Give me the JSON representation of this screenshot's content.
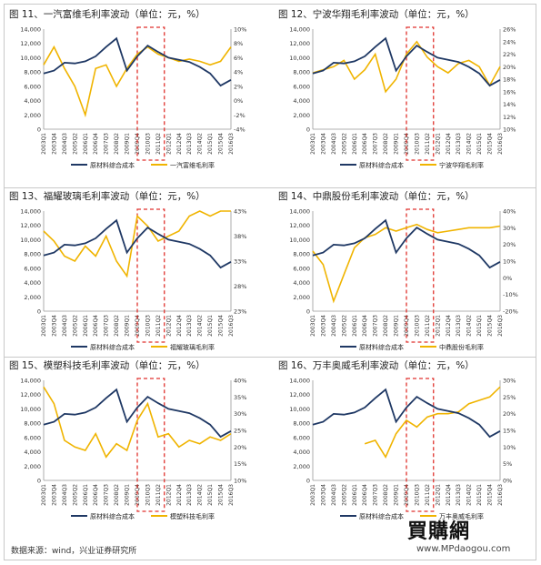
{
  "footer": {
    "source": "数据来源：wind，兴业证券研究所"
  },
  "watermark": {
    "logo": "買購網",
    "url": "www.MPdaogou.com"
  },
  "colors": {
    "cost": "#1f3864",
    "margin": "#f0b400",
    "highlight": "#e0322d"
  },
  "chart_data": [
    {
      "type": "line",
      "title": "图 11、一汽富维毛利率波动（单位：元，%）",
      "legend": [
        "原材料综合成本",
        "一汽富维毛利率"
      ],
      "x": [
        "2003Q1",
        "2003Q4",
        "2004Q3",
        "2005Q2",
        "2006Q1",
        "2006Q4",
        "2007Q3",
        "2008Q2",
        "2009Q1",
        "2009Q4",
        "2010Q3",
        "2011Q2",
        "2012Q1",
        "2012Q4",
        "2013Q3",
        "2014Q2",
        "2015Q1",
        "2015Q4",
        "2016Q3"
      ],
      "ylim": [
        0,
        14000
      ],
      "ytick_step": 2000,
      "ylim2": [
        -4,
        10
      ],
      "ytick2_step": 2,
      "y2_suffix": "%",
      "highlight": [
        9,
        11.6
      ],
      "cost_values": [
        7800,
        8200,
        9300,
        9200,
        9500,
        10200,
        11500,
        12700,
        8200,
        10200,
        11700,
        10800,
        10000,
        9700,
        9400,
        8700,
        7800,
        6100,
        6900
      ],
      "margin_values": [
        5.0,
        7.5,
        4.5,
        2.0,
        -2.0,
        4.5,
        5.0,
        2.0,
        4.5,
        6.5,
        7.5,
        6.5,
        6.0,
        5.5,
        5.8,
        5.5,
        5.0,
        5.5,
        7.5
      ]
    },
    {
      "type": "line",
      "title": "图 12、宁波华翔毛利率波动（单位：元，%）",
      "legend": [
        "原材料综合成本",
        "宁波华翔毛利率"
      ],
      "x": [
        "2003Q1",
        "2003Q4",
        "2004Q3",
        "2005Q2",
        "2006Q1",
        "2006Q4",
        "2007Q3",
        "2008Q2",
        "2009Q1",
        "2009Q4",
        "2010Q3",
        "2011Q2",
        "2012Q1",
        "2012Q4",
        "2013Q3",
        "2014Q2",
        "2015Q1",
        "2015Q4",
        "2016Q3"
      ],
      "ylim": [
        0,
        14000
      ],
      "ytick_step": 2000,
      "ylim2": [
        10,
        26
      ],
      "ytick2_step": 2,
      "y2_suffix": "%",
      "highlight": [
        9,
        11.6
      ],
      "cost_values": [
        7800,
        8200,
        9300,
        9200,
        9500,
        10200,
        11500,
        12700,
        8200,
        10200,
        11700,
        10800,
        10000,
        9700,
        9400,
        8700,
        7800,
        6100,
        6900
      ],
      "margin_values": [
        19.0,
        19.5,
        20.0,
        21.0,
        18.0,
        19.5,
        22.0,
        16.0,
        18.0,
        22.0,
        24.0,
        21.5,
        20.0,
        19.0,
        20.5,
        21.0,
        20.0,
        17.0,
        20.0
      ]
    },
    {
      "type": "line",
      "title": "图 13、福耀玻璃毛利率波动（单位：元，%）",
      "legend": [
        "原材料综合成本",
        "福耀玻璃毛利率"
      ],
      "x": [
        "2003Q1",
        "2003Q4",
        "2004Q3",
        "2005Q2",
        "2006Q1",
        "2006Q4",
        "2007Q3",
        "2008Q2",
        "2009Q1",
        "2009Q4",
        "2010Q3",
        "2011Q2",
        "2012Q1",
        "2012Q4",
        "2013Q3",
        "2014Q2",
        "2015Q1",
        "2015Q4",
        "2016Q3"
      ],
      "ylim": [
        0,
        14000
      ],
      "ytick_step": 2000,
      "ylim2": [
        23,
        43
      ],
      "ytick_labels2": [
        23,
        28,
        33,
        38,
        43
      ],
      "y2_suffix": "%",
      "highlight": [
        9,
        11.6
      ],
      "cost_values": [
        7800,
        8200,
        9300,
        9200,
        9500,
        10200,
        11500,
        12700,
        8200,
        10200,
        11700,
        10800,
        10000,
        9700,
        9400,
        8700,
        7800,
        6100,
        6900
      ],
      "margin_values": [
        39.0,
        37.0,
        34.0,
        33.0,
        36.0,
        34.0,
        38.0,
        33.0,
        30.0,
        42.0,
        40.0,
        37.0,
        38.0,
        39.0,
        42.0,
        43.0,
        42.0,
        43.0,
        43.0
      ]
    },
    {
      "type": "line",
      "title": "图 14、中鼎股份毛利率波动（单位：元，%）",
      "legend": [
        "原材料综合成本",
        "中鼎股份毛利率"
      ],
      "x": [
        "2003Q1",
        "2003Q4",
        "2004Q3",
        "2005Q2",
        "2006Q1",
        "2006Q4",
        "2007Q3",
        "2008Q2",
        "2009Q1",
        "2009Q4",
        "2010Q3",
        "2011Q2",
        "2012Q1",
        "2012Q4",
        "2013Q3",
        "2014Q2",
        "2015Q1",
        "2015Q4",
        "2016Q3"
      ],
      "ylim": [
        0,
        14000
      ],
      "ytick_step": 2000,
      "ylim2": [
        -20,
        40
      ],
      "ytick2_step": 10,
      "y2_suffix": "%",
      "highlight": [
        9,
        11.6
      ],
      "cost_values": [
        7800,
        8200,
        9300,
        9200,
        9500,
        10200,
        11500,
        12700,
        8200,
        10200,
        11700,
        10800,
        10000,
        9700,
        9400,
        8700,
        7800,
        6100,
        6900
      ],
      "margin_values": [
        16.0,
        8.0,
        -14.0,
        2.0,
        18.0,
        24.0,
        26.0,
        30.0,
        28.0,
        30.0,
        32.0,
        29.0,
        27.0,
        28.0,
        29.0,
        30.0,
        30.0,
        30.0,
        31.0
      ]
    },
    {
      "type": "line",
      "title": "图 15、模塑科技毛利率波动（单位：元，%）",
      "legend": [
        "原材料综合成本",
        "模塑科技毛利率"
      ],
      "x": [
        "2003Q1",
        "2003Q4",
        "2004Q3",
        "2005Q2",
        "2006Q1",
        "2006Q4",
        "2007Q3",
        "2008Q2",
        "2009Q1",
        "2009Q4",
        "2010Q3",
        "2011Q2",
        "2012Q1",
        "2012Q4",
        "2013Q3",
        "2014Q2",
        "2015Q1",
        "2015Q4",
        "2016Q3"
      ],
      "ylim": [
        0,
        14000
      ],
      "ytick_step": 2000,
      "ylim2": [
        10,
        40
      ],
      "ytick2_step": 5,
      "y2_suffix": "%",
      "highlight": [
        9,
        11.6
      ],
      "cost_values": [
        7800,
        8200,
        9300,
        9200,
        9500,
        10200,
        11500,
        12700,
        8200,
        10200,
        11700,
        10800,
        10000,
        9700,
        9400,
        8700,
        7800,
        6100,
        6900
      ],
      "margin_values": [
        38.0,
        33.0,
        22.0,
        20.0,
        19.0,
        24.0,
        17.0,
        21.0,
        19.0,
        28.0,
        33.0,
        23.0,
        24.0,
        20.0,
        22.0,
        21.0,
        23.0,
        22.0,
        24.0
      ]
    },
    {
      "type": "line",
      "title": "图 16、万丰奥威毛利率波动（单位：元，%）",
      "legend": [
        "原材料综合成本",
        "万丰奥威毛利率"
      ],
      "x": [
        "2003Q1",
        "2003Q4",
        "2004Q3",
        "2005Q2",
        "2006Q1",
        "2006Q4",
        "2007Q3",
        "2008Q2",
        "2009Q1",
        "2009Q4",
        "2010Q3",
        "2011Q2",
        "2012Q1",
        "2012Q4",
        "2013Q3",
        "2014Q2",
        "2015Q1",
        "2015Q4",
        "2016Q3"
      ],
      "ylim": [
        0,
        14000
      ],
      "ytick_step": 2000,
      "ylim2": [
        0,
        30
      ],
      "ytick2_step": 5,
      "y2_suffix": "%",
      "highlight": [
        9,
        11.6
      ],
      "cost_values": [
        7800,
        8200,
        9300,
        9200,
        9500,
        10200,
        11500,
        12700,
        8200,
        10200,
        11700,
        10800,
        10000,
        9700,
        9400,
        8700,
        7800,
        6100,
        6900
      ],
      "margin_values": [
        null,
        null,
        null,
        null,
        null,
        11.0,
        12.0,
        7.0,
        14.0,
        18.0,
        16.0,
        19.0,
        20.0,
        20.0,
        20.5,
        23.0,
        24.0,
        25.0,
        28.0
      ]
    }
  ]
}
